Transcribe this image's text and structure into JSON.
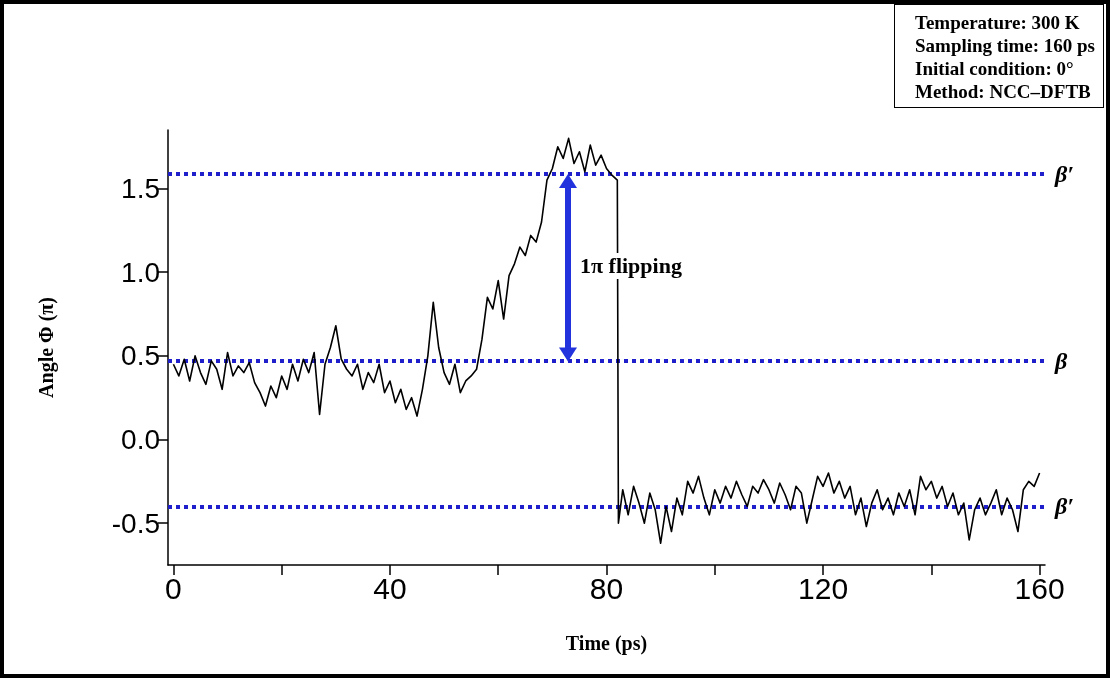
{
  "chart_data": {
    "type": "line",
    "xlabel": "Time (ps)",
    "ylabel": "Angle Φ (π)",
    "xlim": [
      -1,
      161
    ],
    "ylim": [
      -0.75,
      1.85
    ],
    "xticks": [
      0,
      {
        "value": 20,
        "label": null
      },
      40,
      {
        "value": 60,
        "label": null
      },
      80,
      {
        "value": 100,
        "label": null
      },
      120,
      {
        "value": 140,
        "label": null
      },
      160
    ],
    "yticks": [
      -0.5,
      {
        "value": 0,
        "label": "0.0"
      },
      0.5,
      {
        "value": 1,
        "label": "1.0"
      },
      1.5
    ],
    "marker": "none",
    "x": [
      0,
      1,
      2,
      3,
      4,
      5,
      6,
      7,
      8,
      9,
      10,
      11,
      12,
      13,
      14,
      15,
      16,
      17,
      18,
      19,
      20,
      21,
      22,
      23,
      24,
      25,
      26,
      27,
      28,
      29,
      30,
      31,
      32,
      33,
      34,
      35,
      36,
      37,
      38,
      39,
      40,
      41,
      42,
      43,
      44,
      45,
      46,
      47,
      48,
      49,
      50,
      51,
      52,
      53,
      54,
      55,
      56,
      57,
      58,
      59,
      60,
      61,
      62,
      63,
      64,
      65,
      66,
      67,
      68,
      69,
      70,
      71,
      72,
      73,
      74,
      75,
      76,
      77,
      78,
      79,
      80,
      81,
      82,
      82.2,
      83,
      84,
      85,
      86,
      87,
      88,
      89,
      90,
      91,
      92,
      93,
      94,
      95,
      96,
      97,
      98,
      99,
      100,
      101,
      102,
      103,
      104,
      105,
      106,
      107,
      108,
      109,
      110,
      111,
      112,
      113,
      114,
      115,
      116,
      117,
      118,
      119,
      120,
      121,
      122,
      123,
      124,
      125,
      126,
      127,
      128,
      129,
      130,
      131,
      132,
      133,
      134,
      135,
      136,
      137,
      138,
      139,
      140,
      141,
      142,
      143,
      144,
      145,
      146,
      147,
      148,
      149,
      150,
      151,
      152,
      153,
      154,
      155,
      156,
      157,
      158,
      159,
      160
    ],
    "series": [
      {
        "color": "#000000",
        "values": [
          0.45,
          0.38,
          0.48,
          0.35,
          0.5,
          0.4,
          0.33,
          0.47,
          0.42,
          0.3,
          0.52,
          0.38,
          0.44,
          0.4,
          0.46,
          0.34,
          0.28,
          0.2,
          0.32,
          0.25,
          0.38,
          0.3,
          0.45,
          0.35,
          0.48,
          0.4,
          0.52,
          0.15,
          0.45,
          0.55,
          0.68,
          0.48,
          0.42,
          0.38,
          0.45,
          0.3,
          0.4,
          0.34,
          0.45,
          0.28,
          0.35,
          0.22,
          0.3,
          0.18,
          0.25,
          0.14,
          0.3,
          0.5,
          0.82,
          0.55,
          0.4,
          0.33,
          0.45,
          0.28,
          0.35,
          0.38,
          0.42,
          0.6,
          0.85,
          0.78,
          0.95,
          0.72,
          0.98,
          1.05,
          1.15,
          1.1,
          1.22,
          1.18,
          1.3,
          1.55,
          1.62,
          1.75,
          1.68,
          1.8,
          1.65,
          1.72,
          1.6,
          1.76,
          1.64,
          1.7,
          1.62,
          1.58,
          1.55,
          -0.5,
          -0.3,
          -0.45,
          -0.28,
          -0.38,
          -0.5,
          -0.32,
          -0.42,
          -0.62,
          -0.4,
          -0.55,
          -0.35,
          -0.45,
          -0.25,
          -0.32,
          -0.22,
          -0.35,
          -0.45,
          -0.3,
          -0.38,
          -0.28,
          -0.35,
          -0.25,
          -0.33,
          -0.4,
          -0.28,
          -0.32,
          -0.24,
          -0.3,
          -0.38,
          -0.26,
          -0.33,
          -0.42,
          -0.28,
          -0.32,
          -0.5,
          -0.36,
          -0.22,
          -0.28,
          -0.2,
          -0.32,
          -0.25,
          -0.35,
          -0.28,
          -0.45,
          -0.35,
          -0.52,
          -0.38,
          -0.3,
          -0.42,
          -0.35,
          -0.45,
          -0.32,
          -0.4,
          -0.3,
          -0.45,
          -0.22,
          -0.3,
          -0.25,
          -0.35,
          -0.28,
          -0.4,
          -0.32,
          -0.45,
          -0.38,
          -0.6,
          -0.42,
          -0.35,
          -0.45,
          -0.38,
          -0.3,
          -0.45,
          -0.35,
          -0.42,
          -0.55,
          -0.3,
          -0.25,
          -0.28,
          -0.2
        ]
      }
    ],
    "ref_lines": [
      {
        "axis": "y",
        "value": 1.59,
        "label": "β′",
        "color": "#1f1fcc",
        "line_style": "dotted"
      },
      {
        "axis": "y",
        "value": 0.47,
        "label": "β",
        "color": "#1f1fcc",
        "line_style": "dotted"
      },
      {
        "axis": "y",
        "value": -0.4,
        "label": "β′",
        "color": "#1f1fcc",
        "line_style": "dotted"
      }
    ],
    "annotations": [
      "Temperature: 300 K",
      "Sampling time: 160 ps",
      "Initial condition: 0°",
      "Method: NCC–DFTB",
      "1π flipping"
    ]
  }
}
